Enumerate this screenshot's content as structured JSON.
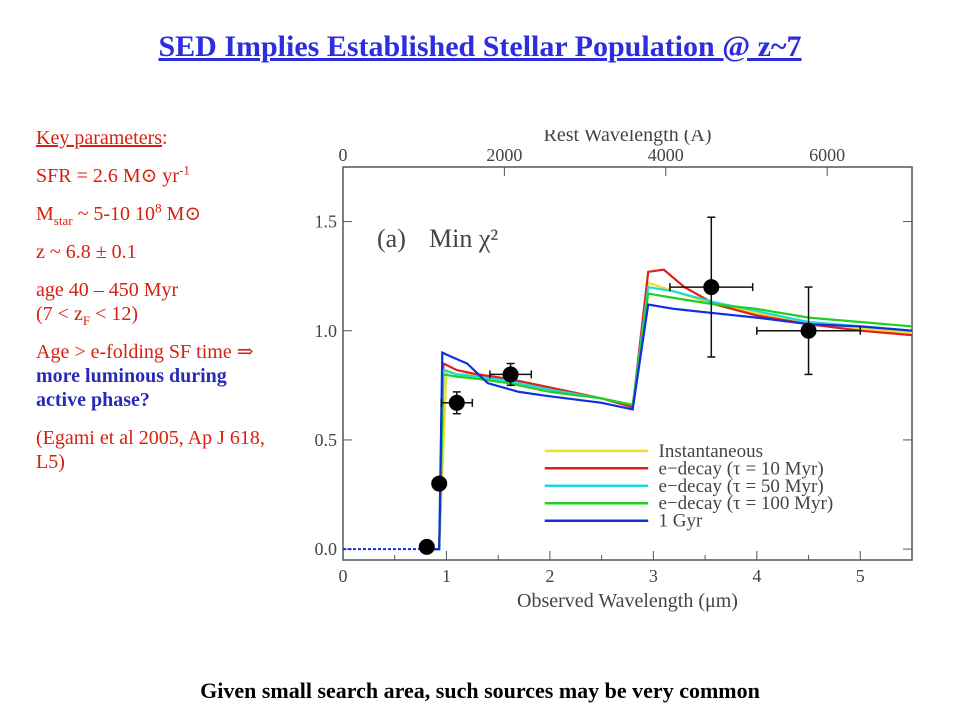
{
  "title": "SED Implies Established Stellar Population @ z~7",
  "params": {
    "heading": "Key parameters",
    "heading_colon": ":",
    "sfr_label": "SFR = 2.6 M",
    "sun_symbol": "⊙",
    "sfr_unit": "yr",
    "sfr_exp": "-1",
    "mstar_M": "M",
    "mstar_sub": "star",
    "mstar_val": "~ 5-10 10",
    "mstar_exp": "8",
    "mstar_unit": "M",
    "z_val": "z ~ 6.8 ± 0.1",
    "age_val": "age 40 – 450 Myr",
    "zf_open": "(7 < z",
    "zf_sub": "F",
    "zf_close": "< 12)",
    "age_note_1": "Age > e-folding SF time",
    "implies": "⇒",
    "age_note_bold": "more luminous during active phase?",
    "ref": "(Egami et al 2005, Ap J 618, L5)"
  },
  "footer": "Given small search area, such sources may be very common",
  "chart_data": {
    "type": "line",
    "panel_label": "(a)",
    "panel_title": "Min χ²",
    "xlabel": "Observed Wavelength (μm)",
    "top_xlabel": "Rest Wavelength (Å)",
    "xlim": [
      0,
      5.5
    ],
    "ylim": [
      -0.05,
      1.75
    ],
    "x_ticks": [
      "0",
      "1",
      "2",
      "3",
      "4",
      "5"
    ],
    "y_ticks": [
      "0.0",
      "0.5",
      "1.0",
      "1.5"
    ],
    "top_ticks": [
      "0",
      "2000",
      "4000",
      "6000"
    ],
    "top_tick_values": [
      0,
      2000,
      4000,
      6000
    ],
    "redshift": 6.8,
    "legend_position": "lower-right",
    "series": [
      {
        "name": "Instantaneous",
        "color": "#f0e020",
        "x": [
          0.8,
          0.93,
          1.0,
          1.1,
          1.3,
          1.6,
          2.0,
          2.5,
          2.8,
          2.95,
          3.2,
          3.6,
          4.0,
          4.5,
          5.0,
          5.5
        ],
        "y": [
          0.0,
          0.0,
          0.82,
          0.8,
          0.8,
          0.78,
          0.74,
          0.69,
          0.66,
          1.22,
          1.18,
          1.12,
          1.08,
          1.03,
          1.01,
          0.99
        ]
      },
      {
        "name": "e−decay (τ = 10 Myr)",
        "color": "#e02020",
        "x": [
          0.8,
          0.93,
          0.97,
          1.1,
          1.3,
          1.6,
          2.0,
          2.5,
          2.8,
          2.95,
          3.1,
          3.3,
          3.6,
          4.0,
          4.5,
          5.0,
          5.5
        ],
        "y": [
          0.0,
          0.0,
          0.85,
          0.82,
          0.8,
          0.78,
          0.74,
          0.69,
          0.65,
          1.27,
          1.28,
          1.2,
          1.12,
          1.07,
          1.03,
          1.0,
          0.98
        ]
      },
      {
        "name": "e−decay (τ = 50 Myr)",
        "color": "#20d8e0",
        "x": [
          0.8,
          0.93,
          0.97,
          1.1,
          1.3,
          1.6,
          2.0,
          2.5,
          2.8,
          2.95,
          3.2,
          3.6,
          4.0,
          4.5,
          5.0,
          5.5
        ],
        "y": [
          0.0,
          0.0,
          0.82,
          0.8,
          0.79,
          0.77,
          0.73,
          0.69,
          0.66,
          1.2,
          1.18,
          1.13,
          1.09,
          1.04,
          1.02,
          1.0
        ]
      },
      {
        "name": "e−decay (τ = 100 Myr)",
        "color": "#20d020",
        "x": [
          0.8,
          0.93,
          0.97,
          1.1,
          1.3,
          1.6,
          2.0,
          2.5,
          2.8,
          2.95,
          3.2,
          3.6,
          4.0,
          4.5,
          5.0,
          5.5
        ],
        "y": [
          0.0,
          0.0,
          0.8,
          0.79,
          0.78,
          0.76,
          0.72,
          0.69,
          0.66,
          1.17,
          1.15,
          1.12,
          1.1,
          1.06,
          1.04,
          1.02
        ]
      },
      {
        "name": "1 Gyr",
        "color": "#1030e0",
        "x": [
          0.8,
          0.93,
          0.96,
          1.05,
          1.2,
          1.4,
          1.7,
          2.0,
          2.5,
          2.8,
          2.95,
          3.2,
          3.6,
          4.0,
          4.5,
          5.0,
          5.5
        ],
        "y": [
          0.0,
          0.0,
          0.9,
          0.88,
          0.85,
          0.76,
          0.72,
          0.7,
          0.67,
          0.64,
          1.12,
          1.1,
          1.08,
          1.06,
          1.03,
          1.02,
          1.0
        ]
      }
    ],
    "observed": [
      {
        "x": 0.81,
        "y": 0.01,
        "xerr": 0.05,
        "yerr": 0.0
      },
      {
        "x": 0.93,
        "y": 0.3,
        "xerr": 0.04,
        "yerr": 0.02
      },
      {
        "x": 1.1,
        "y": 0.67,
        "xerr": 0.15,
        "yerr": 0.05
      },
      {
        "x": 1.62,
        "y": 0.8,
        "xerr": 0.2,
        "yerr": 0.05
      },
      {
        "x": 3.56,
        "y": 1.2,
        "xerr": 0.4,
        "yerr": 0.32
      },
      {
        "x": 4.5,
        "y": 1.0,
        "xerr": 0.5,
        "yerr": 0.2
      }
    ]
  }
}
